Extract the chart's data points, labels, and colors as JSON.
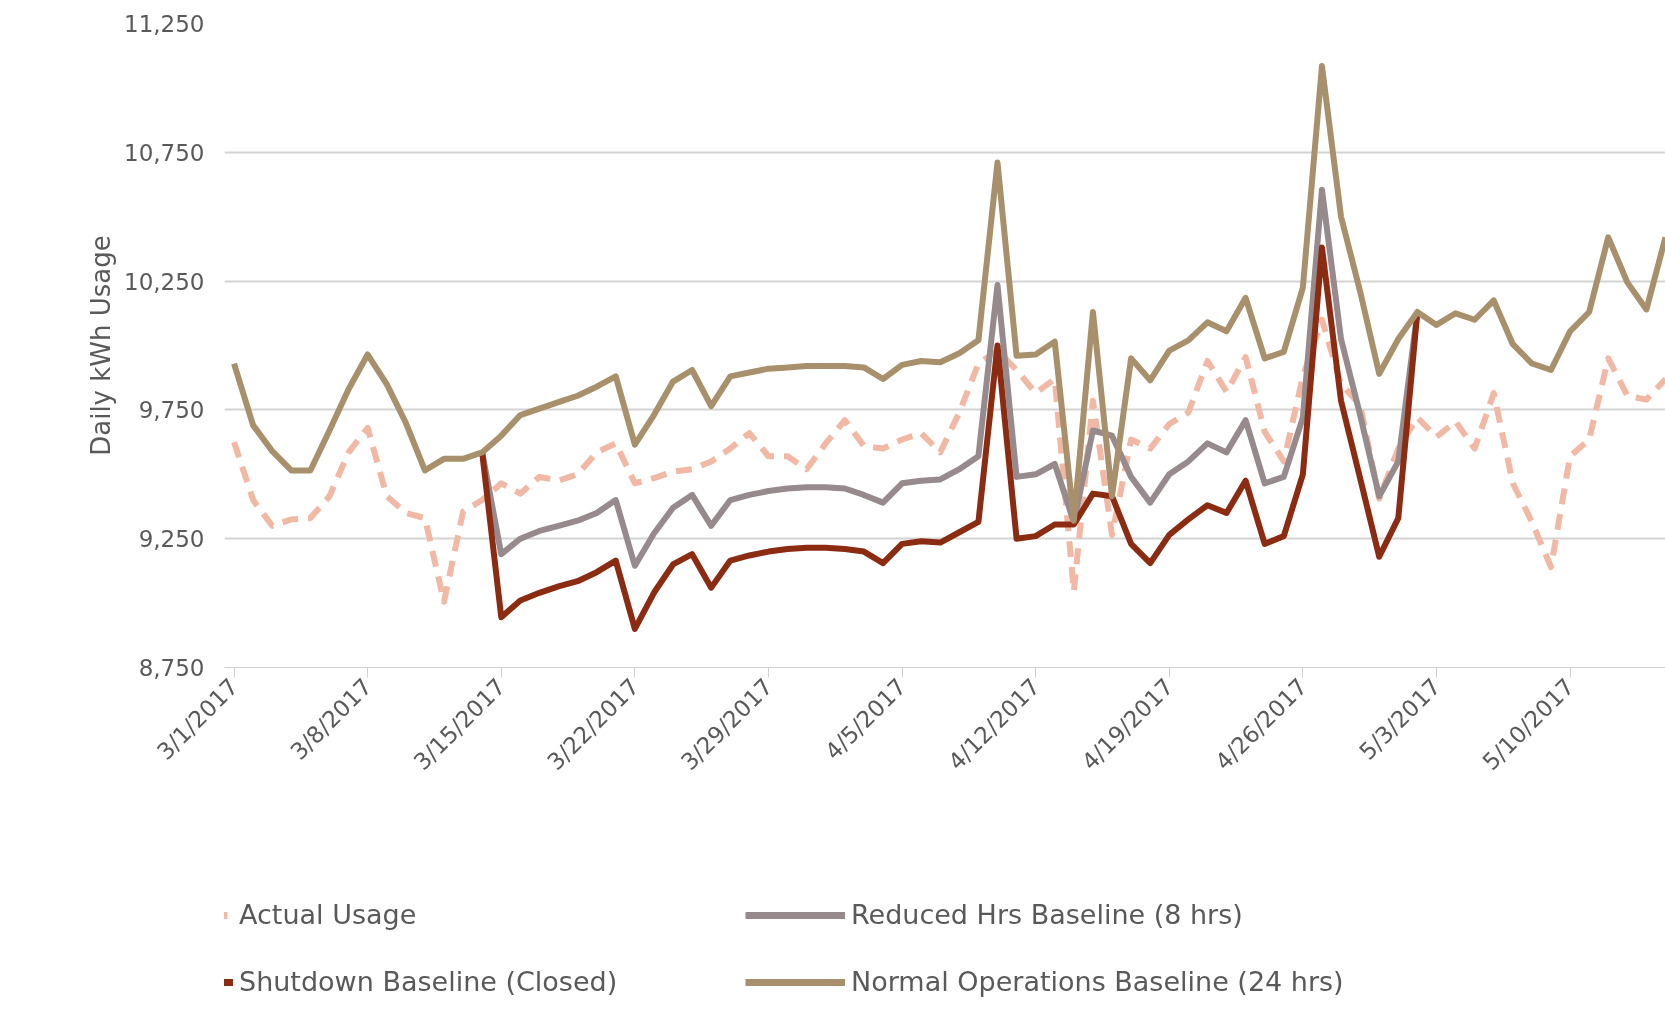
{
  "chart_data": {
    "type": "line",
    "ylabel": "Daily kWh Usage",
    "x": [
      "2017-03-01",
      "2017-03-02",
      "2017-03-03",
      "2017-03-04",
      "2017-03-05",
      "2017-03-06",
      "2017-03-07",
      "2017-03-08",
      "2017-03-09",
      "2017-03-10",
      "2017-03-11",
      "2017-03-12",
      "2017-03-13",
      "2017-03-14",
      "2017-03-15",
      "2017-03-16",
      "2017-03-17",
      "2017-03-18",
      "2017-03-19",
      "2017-03-20",
      "2017-03-21",
      "2017-03-22",
      "2017-03-23",
      "2017-03-24",
      "2017-03-25",
      "2017-03-26",
      "2017-03-27",
      "2017-03-28",
      "2017-03-29",
      "2017-03-30",
      "2017-03-31",
      "2017-04-01",
      "2017-04-02",
      "2017-04-03",
      "2017-04-04",
      "2017-04-05",
      "2017-04-06",
      "2017-04-07",
      "2017-04-08",
      "2017-04-09",
      "2017-04-10",
      "2017-04-11",
      "2017-04-12",
      "2017-04-13",
      "2017-04-14",
      "2017-04-15",
      "2017-04-16",
      "2017-04-17",
      "2017-04-18",
      "2017-04-19",
      "2017-04-20",
      "2017-04-21",
      "2017-04-22",
      "2017-04-23",
      "2017-04-24",
      "2017-04-25",
      "2017-04-26",
      "2017-04-27",
      "2017-04-28",
      "2017-04-29",
      "2017-04-30",
      "2017-05-01",
      "2017-05-02",
      "2017-05-03",
      "2017-05-04",
      "2017-05-05",
      "2017-05-06",
      "2017-05-07",
      "2017-05-08",
      "2017-05-09",
      "2017-05-10",
      "2017-05-11",
      "2017-05-12",
      "2017-05-13",
      "2017-05-14",
      "2017-05-15"
    ],
    "series": [
      {
        "name": "Actual Usage",
        "color": "#f0b8a5",
        "line_style": "dashed",
        "values": [
          9625,
          9400,
          9300,
          9325,
          9330,
          9415,
          9585,
          9680,
          9415,
          9350,
          9330,
          9005,
          9355,
          9400,
          9465,
          9425,
          9490,
          9475,
          9500,
          9585,
          9620,
          9465,
          9485,
          9510,
          9520,
          9550,
          9600,
          9660,
          9570,
          9570,
          9520,
          9620,
          9710,
          9610,
          9600,
          9635,
          9660,
          9585,
          9740,
          9930,
          9980,
          9905,
          9815,
          9870,
          9045,
          9785,
          9265,
          9635,
          9600,
          9695,
          9740,
          9940,
          9820,
          9955,
          9665,
          9550,
          9880,
          10100,
          9850,
          9770,
          9405,
          9600,
          9720,
          9645,
          9705,
          9600,
          9815,
          9465,
          9315,
          9140,
          9570,
          9635,
          9950,
          9805,
          9790,
          9870
        ]
      },
      {
        "name": "Reduced Hrs Baseline (8 hrs)",
        "color": "#968a8c",
        "line_style": "solid",
        "values": [
          null,
          null,
          null,
          null,
          null,
          null,
          null,
          null,
          null,
          null,
          null,
          null,
          null,
          9585,
          9190,
          9250,
          9280,
          9300,
          9320,
          9350,
          9400,
          9145,
          9270,
          9370,
          9420,
          9300,
          9400,
          9420,
          9435,
          9445,
          9450,
          9450,
          9445,
          9420,
          9390,
          9465,
          9475,
          9480,
          9520,
          9570,
          10235,
          9490,
          9500,
          9540,
          9315,
          9670,
          9650,
          9490,
          9390,
          9500,
          9550,
          9620,
          9585,
          9710,
          9465,
          9490,
          9720,
          10605,
          10025,
          9730,
          9415,
          9550,
          10130,
          null,
          null,
          null,
          null,
          null,
          null,
          null,
          null,
          null,
          null,
          null,
          null,
          null
        ]
      },
      {
        "name": "Shutdown Baseline (Closed)",
        "color": "#8b2c12",
        "line_style": "solid",
        "values": [
          null,
          null,
          null,
          null,
          null,
          null,
          null,
          null,
          null,
          null,
          null,
          null,
          null,
          9585,
          8945,
          9010,
          9040,
          9065,
          9085,
          9120,
          9165,
          8900,
          9040,
          9150,
          9190,
          9060,
          9165,
          9185,
          9200,
          9210,
          9215,
          9215,
          9210,
          9200,
          9155,
          9230,
          9240,
          9235,
          9275,
          9315,
          10000,
          9250,
          9260,
          9305,
          9305,
          9425,
          9415,
          9230,
          9155,
          9265,
          9325,
          9380,
          9350,
          9475,
          9230,
          9260,
          9500,
          10380,
          9785,
          9485,
          9180,
          9330,
          10130,
          null,
          null,
          null,
          null,
          null,
          null,
          null,
          null,
          null,
          null,
          null,
          null,
          null
        ]
      },
      {
        "name": "Normal Operations Baseline (24 hrs)",
        "color": "#a8906c",
        "line_style": "solid",
        "values": [
          9930,
          9690,
          9590,
          9515,
          9515,
          9670,
          9830,
          9965,
          9850,
          9700,
          9515,
          9560,
          9560,
          9585,
          9650,
          9730,
          9755,
          9780,
          9805,
          9840,
          9880,
          9615,
          9730,
          9860,
          9905,
          9765,
          9880,
          9895,
          9910,
          9915,
          9920,
          9920,
          9920,
          9915,
          9870,
          9925,
          9940,
          9935,
          9970,
          10020,
          10710,
          9960,
          9965,
          10015,
          9320,
          10130,
          9415,
          9950,
          9865,
          9980,
          10020,
          10090,
          10055,
          10185,
          9950,
          9975,
          10225,
          11085,
          10500,
          10210,
          9890,
          10025,
          10130,
          10080,
          10125,
          10100,
          10175,
          10005,
          9930,
          9905,
          10055,
          10130,
          10420,
          10245,
          10140,
          10420
        ]
      }
    ],
    "xlim": [
      "2017-02-28T12:00",
      "2017-05-15"
    ],
    "xticks": [
      {
        "value": "2017-03-01",
        "label": "3/1/2017"
      },
      {
        "value": "2017-03-08",
        "label": "3/8/2017"
      },
      {
        "value": "2017-03-15",
        "label": "3/15/2017"
      },
      {
        "value": "2017-03-22",
        "label": "3/22/2017"
      },
      {
        "value": "2017-03-29",
        "label": "3/29/2017"
      },
      {
        "value": "2017-04-05",
        "label": "4/5/2017"
      },
      {
        "value": "2017-04-12",
        "label": "4/12/2017"
      },
      {
        "value": "2017-04-19",
        "label": "4/19/2017"
      },
      {
        "value": "2017-04-26",
        "label": "4/26/2017"
      },
      {
        "value": "2017-05-03",
        "label": "5/3/2017"
      },
      {
        "value": "2017-05-10",
        "label": "5/10/2017"
      }
    ],
    "ylim": [
      8750,
      11250
    ],
    "yticks": [
      {
        "value": 8750,
        "label": "8,750"
      },
      {
        "value": 9250,
        "label": "9,250"
      },
      {
        "value": 9750,
        "label": "9,750"
      },
      {
        "value": 10250,
        "label": "10,250"
      },
      {
        "value": 10750,
        "label": "10,750"
      },
      {
        "value": 11250,
        "label": "11,250"
      }
    ],
    "grid": "y",
    "legend": "bottom",
    "marker": "none"
  }
}
